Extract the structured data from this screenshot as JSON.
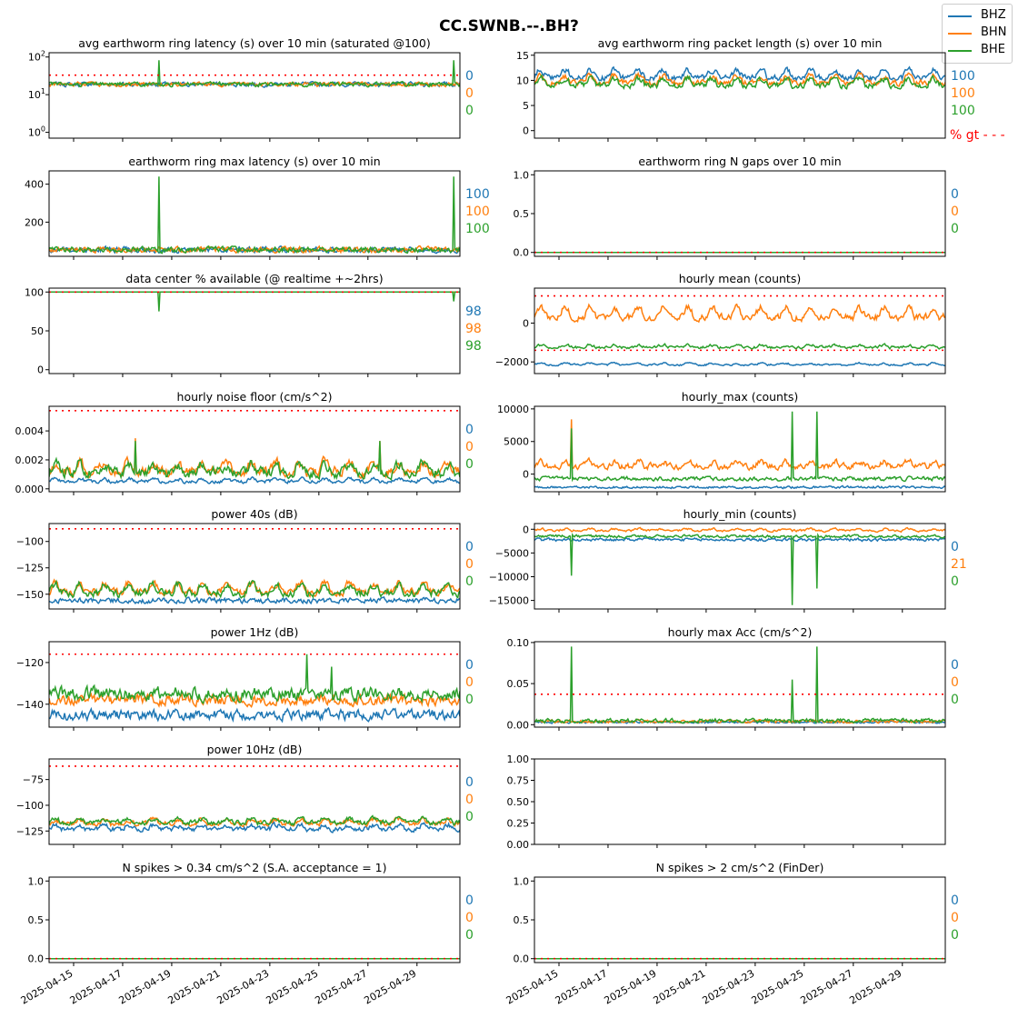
{
  "figure": {
    "suptitle": "CC.SWNB.--.BH?",
    "legend": [
      {
        "name": "BHZ",
        "color": "#1f77b4"
      },
      {
        "name": "BHN",
        "color": "#ff7f0e"
      },
      {
        "name": "BHE",
        "color": "#2ca02c"
      }
    ],
    "threshold_color": "#ff0000",
    "side_note": "% gt - - -",
    "x_ticks": [
      "2025-04-15",
      "2025-04-17",
      "2025-04-19",
      "2025-04-21",
      "2025-04-23",
      "2025-04-25",
      "2025-04-27",
      "2025-04-29"
    ]
  },
  "chart_data": [
    {
      "type": "line",
      "title": "avg earthworm ring latency (s)   over 10 min (saturated @100)",
      "yscale": "log",
      "ylim": [
        0.7,
        130
      ],
      "yticks": [
        1,
        10,
        100
      ],
      "ytick_labels": [
        "10^0",
        "10^1",
        "10^2"
      ],
      "threshold": 33,
      "counts": [
        "0",
        "0",
        "0"
      ],
      "series": [
        {
          "name": "BHZ",
          "shape": "noisy",
          "base": 19,
          "noise": 2,
          "spikes": []
        },
        {
          "name": "BHN",
          "shape": "noisy",
          "base": 19,
          "noise": 2,
          "spikes": []
        },
        {
          "name": "BHE",
          "shape": "noisy",
          "base": 19,
          "noise": 2,
          "spikes": [
            [
              "2025-04-18",
              82
            ],
            [
              "2025-04-30",
              82
            ]
          ]
        }
      ]
    },
    {
      "type": "line",
      "title": "avg earthworm ring packet length (s)   over 10 min",
      "ylim": [
        -1.5,
        15.5
      ],
      "yticks": [
        0,
        5,
        10,
        15
      ],
      "ytick_labels": [
        "0",
        "5",
        "10",
        "15"
      ],
      "threshold": null,
      "counts": [
        "100",
        "100",
        "100"
      ],
      "series": [
        {
          "name": "BHZ",
          "shape": "diurnal",
          "base": 10.5,
          "amp": 1.6,
          "noise": 0.5,
          "spikes": []
        },
        {
          "name": "BHN",
          "shape": "diurnal",
          "base": 9.5,
          "amp": 1.4,
          "noise": 0.5,
          "spikes": []
        },
        {
          "name": "BHE",
          "shape": "diurnal",
          "base": 9.0,
          "amp": 1.4,
          "noise": 0.5,
          "spikes": []
        }
      ]
    },
    {
      "type": "line",
      "title": "earthworm ring max latency (s)   over 10 min",
      "ylim": [
        20,
        470
      ],
      "yticks": [
        200,
        400
      ],
      "ytick_labels": [
        "200",
        "400"
      ],
      "threshold": null,
      "counts": [
        "100",
        "100",
        "100"
      ],
      "series": [
        {
          "name": "BHZ",
          "shape": "noisy",
          "base": 55,
          "noise": 12,
          "spikes": []
        },
        {
          "name": "BHN",
          "shape": "noisy",
          "base": 55,
          "noise": 12,
          "spikes": []
        },
        {
          "name": "BHE",
          "shape": "noisy",
          "base": 55,
          "noise": 12,
          "spikes": [
            [
              "2025-04-18",
              440
            ],
            [
              "2025-04-30",
              440
            ]
          ]
        }
      ]
    },
    {
      "type": "line",
      "title": "earthworm ring N gaps   over 10 min",
      "ylim": [
        -0.05,
        1.05
      ],
      "yticks": [
        0,
        0.5,
        1
      ],
      "ytick_labels": [
        "0.0",
        "0.5",
        "1.0"
      ],
      "threshold": 0,
      "counts": [
        "0",
        "0",
        "0"
      ],
      "series": [
        {
          "name": "BHZ",
          "shape": "flat",
          "base": 0
        },
        {
          "name": "BHN",
          "shape": "flat",
          "base": 0
        },
        {
          "name": "BHE",
          "shape": "flat",
          "base": 0
        }
      ]
    },
    {
      "type": "line",
      "title": "data center % available (@ realtime +~2hrs)",
      "ylim": [
        -5,
        105
      ],
      "yticks": [
        0,
        50,
        100
      ],
      "ytick_labels": [
        "0",
        "50",
        "100"
      ],
      "threshold": 100,
      "counts": [
        "98",
        "98",
        "98"
      ],
      "series": [
        {
          "name": "BHZ",
          "shape": "flat",
          "base": 100
        },
        {
          "name": "BHN",
          "shape": "flat",
          "base": 100
        },
        {
          "name": "BHE",
          "shape": "flat",
          "base": 100,
          "spikes": [
            [
              "2025-04-18",
              75
            ],
            [
              "2025-04-30",
              88
            ]
          ]
        }
      ]
    },
    {
      "type": "line",
      "title": "hourly mean (counts)",
      "ylim": [
        -2600,
        1800
      ],
      "yticks": [
        -2000,
        0
      ],
      "ytick_labels": [
        "−2000",
        "0"
      ],
      "threshold": [
        1400,
        -1400
      ],
      "counts": [],
      "series": [
        {
          "name": "BHZ",
          "shape": "diurnal",
          "base": -2150,
          "amp": 80,
          "noise": 40,
          "spikes": []
        },
        {
          "name": "BHN",
          "shape": "diurnal",
          "base": 300,
          "amp": 500,
          "noise": 150,
          "spikes": []
        },
        {
          "name": "BHE",
          "shape": "diurnal",
          "base": -1250,
          "amp": 120,
          "noise": 60,
          "spikes": []
        }
      ]
    },
    {
      "type": "line",
      "title": "hourly noise floor (cm/s^2)",
      "ylim": [
        -0.0002,
        0.0057
      ],
      "yticks": [
        0,
        0.002,
        0.004
      ],
      "ytick_labels": [
        "0.000",
        "0.002",
        "0.004"
      ],
      "threshold": 0.0054,
      "counts": [
        "0",
        "0",
        "0"
      ],
      "series": [
        {
          "name": "BHZ",
          "shape": "diurnal",
          "base": 0.0005,
          "amp": 0.0002,
          "noise": 0.0001,
          "spikes": []
        },
        {
          "name": "BHN",
          "shape": "diurnal",
          "base": 0.0012,
          "amp": 0.0006,
          "noise": 0.0003,
          "spikes": [
            [
              "2025-04-17",
              0.0035
            ],
            [
              "2025-04-27",
              0.0033
            ]
          ]
        },
        {
          "name": "BHE",
          "shape": "diurnal",
          "base": 0.0011,
          "amp": 0.0006,
          "noise": 0.0003,
          "spikes": [
            [
              "2025-04-17",
              0.0033
            ],
            [
              "2025-04-27",
              0.0033
            ]
          ]
        }
      ]
    },
    {
      "type": "line",
      "title": "hourly_max (counts)",
      "ylim": [
        -2700,
        10400
      ],
      "yticks": [
        0,
        5000,
        10000
      ],
      "ytick_labels": [
        "0",
        "5000",
        "10000"
      ],
      "threshold": null,
      "counts": [],
      "series": [
        {
          "name": "BHZ",
          "shape": "noisy",
          "base": -2000,
          "noise": 150,
          "spikes": []
        },
        {
          "name": "BHN",
          "shape": "diurnal",
          "base": 1200,
          "amp": 700,
          "noise": 400,
          "spikes": [
            [
              "2025-04-15",
              8400
            ]
          ]
        },
        {
          "name": "BHE",
          "shape": "noisy",
          "base": -700,
          "noise": 250,
          "spikes": [
            [
              "2025-04-15",
              7000
            ],
            [
              "2025-04-24",
              9600
            ],
            [
              "2025-04-25",
              9600
            ]
          ]
        }
      ]
    },
    {
      "type": "line",
      "title": "power 40s (dB)",
      "ylim": [
        -164,
        -83
      ],
      "yticks": [
        -150,
        -125,
        -100
      ],
      "ytick_labels": [
        "−150",
        "−125",
        "−100"
      ],
      "threshold": -88,
      "counts": [
        "0",
        "0",
        "0"
      ],
      "series": [
        {
          "name": "BHZ",
          "shape": "noisy",
          "base": -156,
          "noise": 2,
          "spikes": []
        },
        {
          "name": "BHN",
          "shape": "diurnal",
          "base": -148,
          "amp": 8,
          "noise": 3,
          "spikes": []
        },
        {
          "name": "BHE",
          "shape": "diurnal",
          "base": -149,
          "amp": 8,
          "noise": 3,
          "spikes": []
        }
      ]
    },
    {
      "type": "line",
      "title": "hourly_min (counts)",
      "ylim": [
        -16800,
        1200
      ],
      "yticks": [
        -15000,
        -10000,
        -5000,
        0
      ],
      "ytick_labels": [
        "−15000",
        "−10000",
        "−5000",
        "0"
      ],
      "threshold": null,
      "counts": [
        "0",
        "21",
        "0"
      ],
      "series": [
        {
          "name": "BHZ",
          "shape": "noisy",
          "base": -2200,
          "noise": 250,
          "spikes": []
        },
        {
          "name": "BHN",
          "shape": "diurnal",
          "base": -300,
          "amp": 400,
          "noise": 200,
          "spikes": []
        },
        {
          "name": "BHE",
          "shape": "noisy",
          "base": -1500,
          "noise": 250,
          "spikes": [
            [
              "2025-04-15",
              -9800
            ],
            [
              "2025-04-24",
              -16000
            ],
            [
              "2025-04-25",
              -12500
            ]
          ]
        }
      ]
    },
    {
      "type": "line",
      "title": "power 1Hz (dB)",
      "ylim": [
        -151,
        -110
      ],
      "yticks": [
        -140,
        -120
      ],
      "ytick_labels": [
        "−140",
        "−120"
      ],
      "threshold": -116,
      "counts": [
        "0",
        "0",
        "0"
      ],
      "series": [
        {
          "name": "BHZ",
          "shape": "noisy",
          "base": -145,
          "noise": 2,
          "spikes": []
        },
        {
          "name": "BHN",
          "shape": "noisy",
          "base": -138,
          "noise": 2,
          "spikes": []
        },
        {
          "name": "BHE",
          "shape": "noisy",
          "base": -135,
          "noise": 2.5,
          "spikes": [
            [
              "2025-04-24",
              -116
            ],
            [
              "2025-04-25",
              -122
            ]
          ]
        }
      ]
    },
    {
      "type": "line",
      "title": "hourly max Acc (cm/s^2)",
      "ylim": [
        -0.003,
        0.101
      ],
      "yticks": [
        0,
        0.05,
        0.1
      ],
      "ytick_labels": [
        "0.00",
        "0.05",
        "0.10"
      ],
      "threshold": 0.037,
      "counts": [
        "0",
        "0",
        "0"
      ],
      "series": [
        {
          "name": "BHZ",
          "shape": "noisy",
          "base": 0.003,
          "noise": 0.001,
          "spikes": []
        },
        {
          "name": "BHN",
          "shape": "noisy",
          "base": 0.004,
          "noise": 0.0015,
          "spikes": []
        },
        {
          "name": "BHE",
          "shape": "noisy",
          "base": 0.005,
          "noise": 0.002,
          "spikes": [
            [
              "2025-04-15",
              0.095
            ],
            [
              "2025-04-24",
              0.055
            ],
            [
              "2025-04-25",
              0.095
            ]
          ]
        }
      ]
    },
    {
      "type": "line",
      "title": "power 10Hz (dB)",
      "ylim": [
        -138,
        -55
      ],
      "yticks": [
        -125,
        -100,
        -75
      ],
      "ytick_labels": [
        "−125",
        "−100",
        "−75"
      ],
      "threshold": -62,
      "counts": [
        "0",
        "0",
        "0"
      ],
      "series": [
        {
          "name": "BHZ",
          "shape": "diurnal",
          "base": -123,
          "amp": 4,
          "noise": 2,
          "spikes": []
        },
        {
          "name": "BHN",
          "shape": "diurnal",
          "base": -118,
          "amp": 4,
          "noise": 2,
          "spikes": []
        },
        {
          "name": "BHE",
          "shape": "diurnal",
          "base": -117,
          "amp": 4,
          "noise": 2,
          "spikes": []
        }
      ]
    },
    {
      "type": "line",
      "title": "",
      "ylim": [
        0,
        1
      ],
      "yticks": [
        0,
        0.25,
        0.5,
        0.75,
        1
      ],
      "ytick_labels": [
        "0.00",
        "0.25",
        "0.50",
        "0.75",
        "1.00"
      ],
      "threshold": null,
      "counts": [],
      "series": []
    },
    {
      "type": "line",
      "title": "N spikes > 0.34 cm/s^2 (S.A. acceptance = 1)",
      "ylim": [
        -0.05,
        1.05
      ],
      "yticks": [
        0,
        0.5,
        1
      ],
      "ytick_labels": [
        "0.0",
        "0.5",
        "1.0"
      ],
      "threshold": 0,
      "counts": [
        "0",
        "0",
        "0"
      ],
      "series": [
        {
          "name": "BHZ",
          "shape": "flat",
          "base": 0
        },
        {
          "name": "BHN",
          "shape": "flat",
          "base": 0
        },
        {
          "name": "BHE",
          "shape": "flat",
          "base": 0
        }
      ]
    },
    {
      "type": "line",
      "title": "N spikes > 2 cm/s^2 (FinDer)",
      "ylim": [
        -0.05,
        1.05
      ],
      "yticks": [
        0,
        0.5,
        1
      ],
      "ytick_labels": [
        "0.0",
        "0.5",
        "1.0"
      ],
      "threshold": 0,
      "counts": [
        "0",
        "0",
        "0"
      ],
      "series": [
        {
          "name": "BHZ",
          "shape": "flat",
          "base": 0
        },
        {
          "name": "BHN",
          "shape": "flat",
          "base": 0
        },
        {
          "name": "BHE",
          "shape": "flat",
          "base": 0
        }
      ]
    }
  ]
}
